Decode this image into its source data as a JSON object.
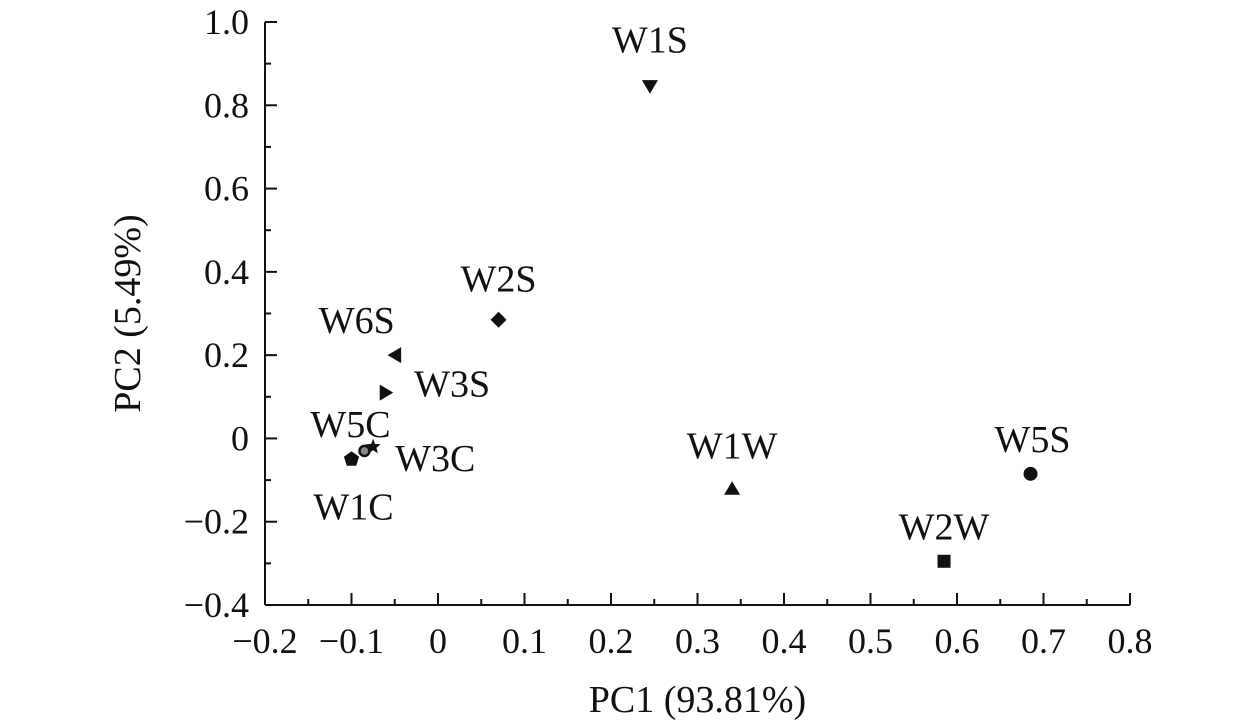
{
  "chart_data": {
    "type": "scatter",
    "title": "",
    "xlabel": "PC1 (93.81%)",
    "ylabel": "PC2 (5.49%)",
    "xlim": [
      -0.2,
      0.8
    ],
    "ylim": [
      -0.4,
      1.0
    ],
    "x_ticks": [
      -0.2,
      -0.1,
      0,
      0.1,
      0.2,
      0.3,
      0.4,
      0.5,
      0.6,
      0.7,
      0.8
    ],
    "x_tick_labels": [
      "−0.2",
      "−0.1",
      "0",
      "0.1",
      "0.2",
      "0.3",
      "0.4",
      "0.5",
      "0.6",
      "0.7",
      "0.8"
    ],
    "y_ticks": [
      -0.4,
      -0.2,
      0,
      0.2,
      0.4,
      0.6,
      0.8,
      1.0
    ],
    "y_tick_labels": [
      "−0.4",
      "−0.2",
      "0",
      "0.2",
      "0.4",
      "0.6",
      "0.8",
      "1.0"
    ],
    "grid": false,
    "legend": "none",
    "points": [
      {
        "label": "W1S",
        "x": 0.245,
        "y": 0.845,
        "marker": "triangle-down"
      },
      {
        "label": "W2S",
        "x": 0.07,
        "y": 0.285,
        "marker": "diamond"
      },
      {
        "label": "W6S",
        "x": -0.05,
        "y": 0.2,
        "marker": "triangle-left"
      },
      {
        "label": "W3S",
        "x": -0.06,
        "y": 0.11,
        "marker": "triangle-right"
      },
      {
        "label": "W5C",
        "x": -0.085,
        "y": -0.03,
        "marker": "circle-open"
      },
      {
        "label": "W3C",
        "x": -0.075,
        "y": -0.02,
        "marker": "star"
      },
      {
        "label": "W1C",
        "x": -0.1,
        "y": -0.05,
        "marker": "pentagon"
      },
      {
        "label": "W1W",
        "x": 0.34,
        "y": -0.12,
        "marker": "triangle-up"
      },
      {
        "label": "W5S",
        "x": 0.685,
        "y": -0.085,
        "marker": "circle"
      },
      {
        "label": "W2W",
        "x": 0.585,
        "y": -0.295,
        "marker": "square"
      }
    ],
    "colors": {
      "marker": "#111111",
      "axis": "#111111",
      "background": "#ffffff"
    }
  }
}
